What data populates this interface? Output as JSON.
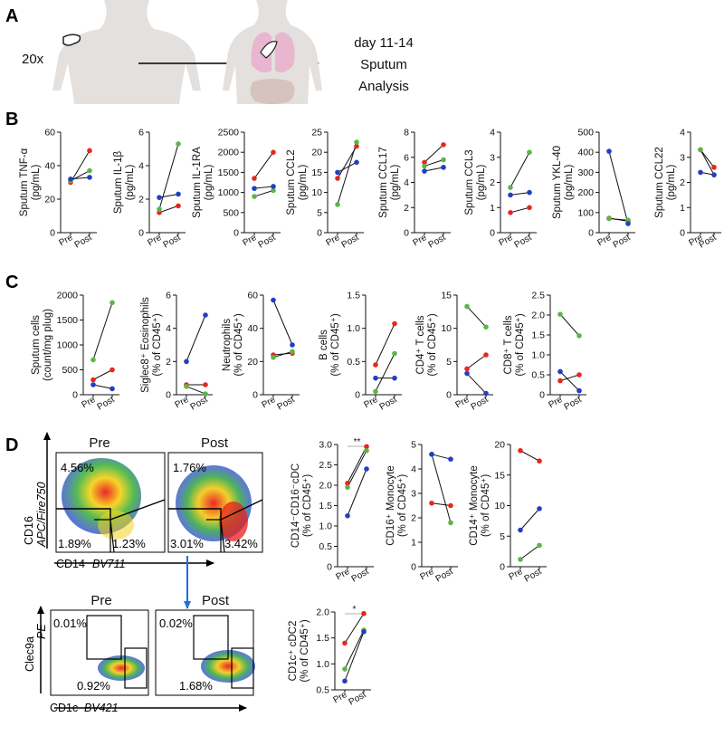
{
  "colors": {
    "red": "#e8261f",
    "green": "#5cb548",
    "blue": "#1f3fc4",
    "line": "#111111",
    "silhouette": "#e3e0de",
    "lung": "#e8b6cf",
    "gut": "#d6c3bf"
  },
  "panel_a": {
    "label": "A",
    "dose": "20x",
    "analysis": [
      "day 11-14",
      "Sputum",
      "Analysis"
    ]
  },
  "panel_b": {
    "label": "B"
  },
  "panel_c": {
    "label": "C"
  },
  "panel_d": {
    "label": "D",
    "flow_top": {
      "y_axis": [
        "CD16",
        "APC/Fire750"
      ],
      "x_axis": [
        "CD14",
        "BV711"
      ],
      "plots": [
        {
          "title": "Pre",
          "top_left": "4.56%",
          "bottom_left": "1.89%",
          "bottom_right": "1.23%"
        },
        {
          "title": "Post",
          "top_left": "1.76%",
          "bottom_left": "3.01%",
          "bottom_right": "3.42%"
        }
      ]
    },
    "flow_bottom": {
      "y_axis": [
        "Clec9a",
        "PE"
      ],
      "x_axis": [
        "CD1c",
        "BV421"
      ],
      "plots": [
        {
          "title": "Pre",
          "top_left": "0.01%",
          "bottom_left": "0.92%"
        },
        {
          "title": "Post",
          "top_left": "0.02%",
          "bottom_left": "1.68%"
        }
      ]
    }
  },
  "chart_data": [
    {
      "panel": "B",
      "type": "line",
      "ylabel": [
        "Sputum TNF-α",
        "(pg/mL)"
      ],
      "ylim": [
        0,
        60
      ],
      "yticks": [
        "0",
        "20",
        "40",
        "60"
      ],
      "categories": [
        "Pre",
        "Post"
      ],
      "series": [
        {
          "color": "red",
          "values": [
            30,
            49
          ]
        },
        {
          "color": "green",
          "values": [
            31,
            37
          ]
        },
        {
          "color": "blue",
          "values": [
            32,
            33
          ]
        }
      ]
    },
    {
      "panel": "B",
      "type": "line",
      "ylabel": [
        "Sputum IL-1β",
        "(pg/mL)"
      ],
      "ylim": [
        0,
        6
      ],
      "yticks": [
        "0",
        "2",
        "4",
        "6"
      ],
      "categories": [
        "Pre",
        "Post"
      ],
      "series": [
        {
          "color": "red",
          "values": [
            1.2,
            1.6
          ]
        },
        {
          "color": "green",
          "values": [
            1.4,
            5.3
          ]
        },
        {
          "color": "blue",
          "values": [
            2.1,
            2.3
          ]
        }
      ]
    },
    {
      "panel": "B",
      "type": "line",
      "ylabel": [
        "Sputum IL-1RA",
        "(pg/mL)"
      ],
      "ylim": [
        0,
        2500
      ],
      "yticks": [
        "0",
        "500",
        "1000",
        "1500",
        "2000",
        "2500"
      ],
      "categories": [
        "Pre",
        "Post"
      ],
      "series": [
        {
          "color": "red",
          "values": [
            1350,
            2000
          ]
        },
        {
          "color": "green",
          "values": [
            900,
            1050
          ]
        },
        {
          "color": "blue",
          "values": [
            1100,
            1150
          ]
        }
      ]
    },
    {
      "panel": "B",
      "type": "line",
      "ylabel": [
        "Sputum CCL2",
        "(pg/mL)"
      ],
      "ylim": [
        0,
        25
      ],
      "yticks": [
        "0",
        "5",
        "10",
        "15",
        "20",
        "25"
      ],
      "categories": [
        "Pre",
        "Post"
      ],
      "series": [
        {
          "color": "red",
          "values": [
            13.5,
            21.5
          ]
        },
        {
          "color": "green",
          "values": [
            7,
            22.5
          ]
        },
        {
          "color": "blue",
          "values": [
            15,
            17.5
          ]
        }
      ]
    },
    {
      "panel": "B",
      "type": "line",
      "ylabel": [
        "Sputum CCL17",
        "(pg/mL)"
      ],
      "ylim": [
        0,
        8
      ],
      "yticks": [
        "0",
        "2",
        "4",
        "6",
        "8"
      ],
      "categories": [
        "Pre",
        "Post"
      ],
      "series": [
        {
          "color": "red",
          "values": [
            5.6,
            7
          ]
        },
        {
          "color": "green",
          "values": [
            5.3,
            5.8
          ]
        },
        {
          "color": "blue",
          "values": [
            4.9,
            5.2
          ]
        }
      ]
    },
    {
      "panel": "B",
      "type": "line",
      "ylabel": [
        "Sputum CCL3",
        "(pg/mL)"
      ],
      "ylim": [
        0,
        4
      ],
      "yticks": [
        "0",
        "1",
        "2",
        "3",
        "4"
      ],
      "categories": [
        "Pre",
        "Post"
      ],
      "series": [
        {
          "color": "red",
          "values": [
            0.8,
            1
          ]
        },
        {
          "color": "green",
          "values": [
            1.8,
            3.2
          ]
        },
        {
          "color": "blue",
          "values": [
            1.5,
            1.6
          ]
        }
      ]
    },
    {
      "panel": "B",
      "type": "line",
      "ylabel": [
        "Sputum YKL-40",
        "(pg/mL)"
      ],
      "ylim": [
        0,
        500
      ],
      "yticks": [
        "0",
        "100",
        "200",
        "300",
        "400",
        "500"
      ],
      "categories": [
        "Pre",
        "Post"
      ],
      "series": [
        {
          "color": "red",
          "values": [
            72,
            57
          ]
        },
        {
          "color": "green",
          "values": [
            70,
            62
          ]
        },
        {
          "color": "blue",
          "values": [
            405,
            45
          ]
        }
      ]
    },
    {
      "panel": "B",
      "type": "line",
      "ylabel": [
        "Sputum CCL22",
        "(pg/mL)"
      ],
      "ylim": [
        0,
        4
      ],
      "yticks": [
        "0",
        "1",
        "2",
        "3",
        "4"
      ],
      "categories": [
        "Pre",
        "Post"
      ],
      "series": [
        {
          "color": "red",
          "values": [
            3.3,
            2.6
          ]
        },
        {
          "color": "green",
          "values": [
            3.3,
            2.3
          ]
        },
        {
          "color": "blue",
          "values": [
            2.4,
            2.3
          ]
        }
      ]
    },
    {
      "panel": "C",
      "type": "line",
      "ylabel": [
        "Sputum cells",
        "(count/mg plug)"
      ],
      "ylim": [
        0,
        2000
      ],
      "yticks": [
        "0",
        "500",
        "1000",
        "1500",
        "2000"
      ],
      "categories": [
        "Pre",
        "Post"
      ],
      "series": [
        {
          "color": "red",
          "values": [
            300,
            500
          ]
        },
        {
          "color": "green",
          "values": [
            700,
            1850
          ]
        },
        {
          "color": "blue",
          "values": [
            200,
            120
          ]
        }
      ]
    },
    {
      "panel": "C",
      "type": "line",
      "ylabel": [
        "Siglec8⁺ Eosinophils",
        "(% of CD45⁺)"
      ],
      "ylim": [
        0,
        6
      ],
      "yticks": [
        "0",
        "2",
        "4",
        "6"
      ],
      "categories": [
        "Pre",
        "Post"
      ],
      "series": [
        {
          "color": "red",
          "values": [
            0.6,
            0.6
          ]
        },
        {
          "color": "green",
          "values": [
            0.5,
            0.05
          ]
        },
        {
          "color": "blue",
          "values": [
            2,
            4.8
          ]
        }
      ]
    },
    {
      "panel": "C",
      "type": "line",
      "ylabel": [
        "Neutrophils",
        "(% of CD45⁺)"
      ],
      "ylim": [
        0,
        60
      ],
      "yticks": [
        "0",
        "20",
        "40",
        "60"
      ],
      "categories": [
        "Pre",
        "Post"
      ],
      "series": [
        {
          "color": "red",
          "values": [
            24,
            25
          ]
        },
        {
          "color": "green",
          "values": [
            22.5,
            26
          ]
        },
        {
          "color": "blue",
          "values": [
            57,
            30
          ]
        }
      ]
    },
    {
      "panel": "C",
      "type": "line",
      "ylabel": [
        "B cells",
        "(% of CD45⁺)"
      ],
      "ylim": [
        0,
        1.5
      ],
      "yticks": [
        "0",
        "0.5",
        "1.0",
        "1.5"
      ],
      "categories": [
        "Pre",
        "Post"
      ],
      "series": [
        {
          "color": "red",
          "values": [
            0.45,
            1.07
          ]
        },
        {
          "color": "green",
          "values": [
            0.05,
            0.62
          ]
        },
        {
          "color": "blue",
          "values": [
            0.25,
            0.25
          ]
        }
      ]
    },
    {
      "panel": "C",
      "type": "line",
      "ylabel": [
        "CD4⁺ T cells",
        "(% of CD45⁺)"
      ],
      "ylim": [
        0,
        15
      ],
      "yticks": [
        "0",
        "5",
        "10",
        "15"
      ],
      "categories": [
        "Pre",
        "Post"
      ],
      "series": [
        {
          "color": "red",
          "values": [
            3.9,
            6
          ]
        },
        {
          "color": "green",
          "values": [
            13.3,
            10.2
          ]
        },
        {
          "color": "blue",
          "values": [
            3.2,
            0.2
          ]
        }
      ]
    },
    {
      "panel": "C",
      "type": "line",
      "ylabel": [
        "CD8⁺ T cells",
        "(% of CD45⁺)"
      ],
      "ylim": [
        0,
        2.5
      ],
      "yticks": [
        "0",
        "0.5",
        "1.0",
        "1.5",
        "2.0",
        "2.5"
      ],
      "categories": [
        "Pre",
        "Post"
      ],
      "series": [
        {
          "color": "red",
          "values": [
            0.35,
            0.5
          ]
        },
        {
          "color": "green",
          "values": [
            2.02,
            1.48
          ]
        },
        {
          "color": "blue",
          "values": [
            0.58,
            0.1
          ]
        }
      ]
    },
    {
      "panel": "D",
      "type": "line",
      "ylabel": [
        "CD14⁻CD16⁻cDC",
        "(% of CD45⁺)"
      ],
      "ylim": [
        0,
        3
      ],
      "yticks": [
        "0",
        "0.5",
        "1.0",
        "1.5",
        "2.0",
        "2.5",
        "3.0"
      ],
      "categories": [
        "Pre",
        "Post"
      ],
      "significance": "**",
      "series": [
        {
          "color": "red",
          "values": [
            2.05,
            2.95
          ]
        },
        {
          "color": "green",
          "values": [
            1.95,
            2.85
          ]
        },
        {
          "color": "blue",
          "values": [
            1.25,
            2.4
          ]
        }
      ]
    },
    {
      "panel": "D",
      "type": "line",
      "ylabel": [
        "CD16⁺ Monocyte",
        "(% of CD45⁺)"
      ],
      "ylim": [
        0,
        5
      ],
      "yticks": [
        "0",
        "1",
        "2",
        "3",
        "4",
        "5"
      ],
      "categories": [
        "Pre",
        "Post"
      ],
      "series": [
        {
          "color": "red",
          "values": [
            2.6,
            2.5
          ]
        },
        {
          "color": "green",
          "values": [
            4.6,
            1.8
          ]
        },
        {
          "color": "blue",
          "values": [
            4.6,
            4.4
          ]
        }
      ]
    },
    {
      "panel": "D",
      "type": "line",
      "ylabel": [
        "CD14⁺ Monocyte",
        "(% of CD45⁺)"
      ],
      "ylim": [
        0,
        20
      ],
      "yticks": [
        "0",
        "5",
        "10",
        "15",
        "20"
      ],
      "categories": [
        "Pre",
        "Post"
      ],
      "series": [
        {
          "color": "red",
          "values": [
            19,
            17.3
          ]
        },
        {
          "color": "green",
          "values": [
            1.2,
            3.5
          ]
        },
        {
          "color": "blue",
          "values": [
            6,
            9.5
          ]
        }
      ]
    },
    {
      "panel": "D",
      "type": "line",
      "ylabel": [
        "CD1c⁺ cDC2",
        "(% of CD45⁺)"
      ],
      "ylim": [
        0.5,
        2
      ],
      "yticks": [
        "0.5",
        "1.0",
        "1.5",
        "2.0"
      ],
      "categories": [
        "Pre",
        "Post"
      ],
      "significance": "*",
      "series": [
        {
          "color": "red",
          "values": [
            1.4,
            1.97
          ]
        },
        {
          "color": "green",
          "values": [
            0.9,
            1.65
          ]
        },
        {
          "color": "blue",
          "values": [
            0.67,
            1.62
          ]
        }
      ]
    }
  ]
}
